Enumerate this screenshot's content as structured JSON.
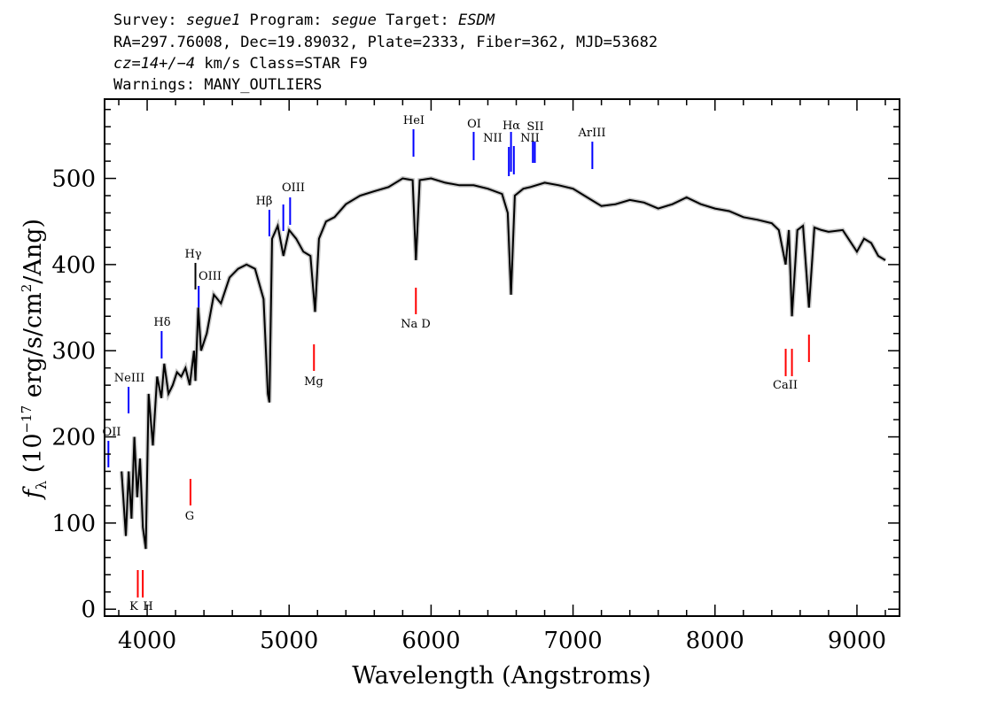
{
  "header": {
    "line1": {
      "survey_label": "Survey: ",
      "survey": "segue1",
      "program_label": " Program: ",
      "program": "segue",
      "target_label": " Target: ",
      "target": "ESDM"
    },
    "line2": "RA=297.76008, Dec=19.89032, Plate=2333, Fiber=362, MJD=53682",
    "line3": {
      "cz": "cz=14+/−4",
      "rest": " km/s Class=STAR F9"
    },
    "line4": "Warnings: MANY_OUTLIERS"
  },
  "chart_data": {
    "type": "line",
    "xlabel": "Wavelength (Angstroms)",
    "ylabel": "f_λ (10^-17 erg/s/cm^2/Ang)",
    "xlim": [
      3700,
      9300
    ],
    "ylim": [
      -8,
      592
    ],
    "xticks": [
      4000,
      5000,
      6000,
      7000,
      8000,
      9000
    ],
    "yticks": [
      0,
      100,
      200,
      300,
      400,
      500
    ],
    "series": [
      {
        "color": "#000000",
        "x": [
          3820,
          3850,
          3870,
          3890,
          3910,
          3930,
          3950,
          3970,
          3990,
          4010,
          4040,
          4070,
          4100,
          4120,
          4150,
          4180,
          4210,
          4240,
          4270,
          4300,
          4330,
          4340,
          4360,
          4380,
          4420,
          4470,
          4520,
          4580,
          4640,
          4700,
          4760,
          4820,
          4850,
          4861,
          4880,
          4920,
          4960,
          5000,
          5050,
          5100,
          5150,
          5183,
          5210,
          5260,
          5320,
          5400,
          5500,
          5600,
          5700,
          5800,
          5870,
          5893,
          5920,
          6000,
          6100,
          6200,
          6300,
          6400,
          6500,
          6540,
          6563,
          6590,
          6650,
          6700,
          6800,
          6900,
          7000,
          7100,
          7200,
          7300,
          7400,
          7500,
          7600,
          7700,
          7800,
          7900,
          8000,
          8100,
          8200,
          8300,
          8400,
          8450,
          8498,
          8520,
          8542,
          8580,
          8620,
          8662,
          8700,
          8750,
          8800,
          8900,
          9000,
          9050,
          9100,
          9150,
          9200
        ],
        "y": [
          160,
          85,
          160,
          105,
          200,
          130,
          175,
          95,
          70,
          250,
          190,
          270,
          245,
          285,
          250,
          260,
          275,
          270,
          280,
          260,
          300,
          265,
          350,
          300,
          320,
          365,
          355,
          385,
          395,
          400,
          395,
          360,
          250,
          240,
          430,
          445,
          410,
          440,
          430,
          415,
          410,
          345,
          430,
          450,
          455,
          470,
          480,
          485,
          490,
          500,
          498,
          405,
          498,
          500,
          495,
          492,
          492,
          488,
          482,
          460,
          365,
          480,
          488,
          490,
          495,
          492,
          488,
          478,
          468,
          470,
          475,
          472,
          465,
          470,
          478,
          470,
          465,
          462,
          455,
          452,
          448,
          440,
          400,
          440,
          340,
          440,
          445,
          350,
          443,
          440,
          438,
          440,
          415,
          430,
          425,
          410,
          405
        ]
      }
    ],
    "ion_lines": [
      {
        "label": "HeI",
        "x": 5876,
        "color": "#0000ff"
      },
      {
        "label": "OI",
        "x": 6300,
        "color": "#0000ff"
      },
      {
        "label": "NII",
        "x": 6548,
        "color": "#0000ff"
      },
      {
        "label": "Hα",
        "x": 6563,
        "color": "#0000ff"
      },
      {
        "label": "NII",
        "x": 6583,
        "color": "#0000ff"
      },
      {
        "label": "SII",
        "x": 6717,
        "color": "#0000ff"
      },
      {
        "label": "SII",
        "x": 6731,
        "color": "#0000ff"
      },
      {
        "label": "ArIII",
        "x": 7136,
        "color": "#0000ff"
      },
      {
        "label": "Hβ",
        "x": 4861,
        "color": "#0000ff"
      },
      {
        "label": "OIII",
        "x": 4959,
        "color": "#0000ff"
      },
      {
        "label": "OIII",
        "x": 5007,
        "color": "#0000ff"
      },
      {
        "label": "Hγ",
        "x": 4340,
        "color": "#000000"
      },
      {
        "label": "OIII",
        "x": 4363,
        "color": "#0000ff"
      },
      {
        "label": "Hδ",
        "x": 4102,
        "color": "#0000ff"
      },
      {
        "label": "NeIII",
        "x": 3869,
        "color": "#0000ff"
      },
      {
        "label": "OII",
        "x": 3727,
        "color": "#0000ff"
      },
      {
        "label": "Na D",
        "x": 5893,
        "color": "#ff0000"
      },
      {
        "label": "Mg",
        "x": 5175,
        "color": "#ff0000"
      },
      {
        "label": "G",
        "x": 4305,
        "color": "#ff0000"
      },
      {
        "label": "K",
        "x": 3934,
        "color": "#ff0000"
      },
      {
        "label": "H",
        "x": 3969,
        "color": "#ff0000"
      },
      {
        "label": "CaII",
        "x": 8498,
        "color": "#ff0000"
      },
      {
        "label": "CaII",
        "x": 8542,
        "color": "#ff0000"
      },
      {
        "label": "CaII",
        "x": 8662,
        "color": "#ff0000"
      }
    ]
  }
}
